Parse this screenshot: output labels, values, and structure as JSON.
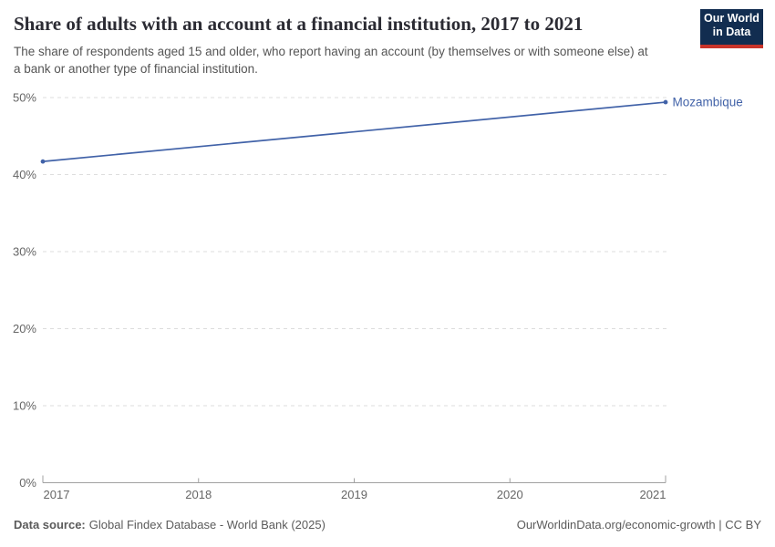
{
  "header": {
    "title": "Share of adults with an account at a financial institution, 2017 to 2021",
    "subtitle": "The share of respondents aged 15 and older, who report having an account (by themselves or with someone else) at a bank or another type of financial institution."
  },
  "logo": {
    "line1": "Our World",
    "line2": "in Data",
    "background_color": "#122d50",
    "accent_color": "#c9342a"
  },
  "footer": {
    "source_label": "Data source:",
    "source_value": "Global Findex Database - World Bank (2025)",
    "link": "OurWorldinData.org/economic-growth | CC BY"
  },
  "chart_data": {
    "type": "line",
    "title": "Share of adults with an account at a financial institution, 2017 to 2021",
    "series": [
      {
        "name": "Mozambique",
        "color": "#4162a8",
        "x": [
          2017,
          2021
        ],
        "values": [
          41.7,
          49.4
        ]
      }
    ],
    "xticks": [
      2017,
      2018,
      2019,
      2020,
      2021
    ],
    "yticks": [
      0,
      10,
      20,
      30,
      40,
      50
    ],
    "y_unit": "%",
    "xlim": [
      2017,
      2021
    ],
    "ylim": [
      0,
      50
    ],
    "grid": true,
    "grid_style": "dashed",
    "gridline_color": "#dddddd",
    "axis_color": "#a1a1a1",
    "tick_label_color": "#666666",
    "legend_position": "end-of-line-label"
  }
}
